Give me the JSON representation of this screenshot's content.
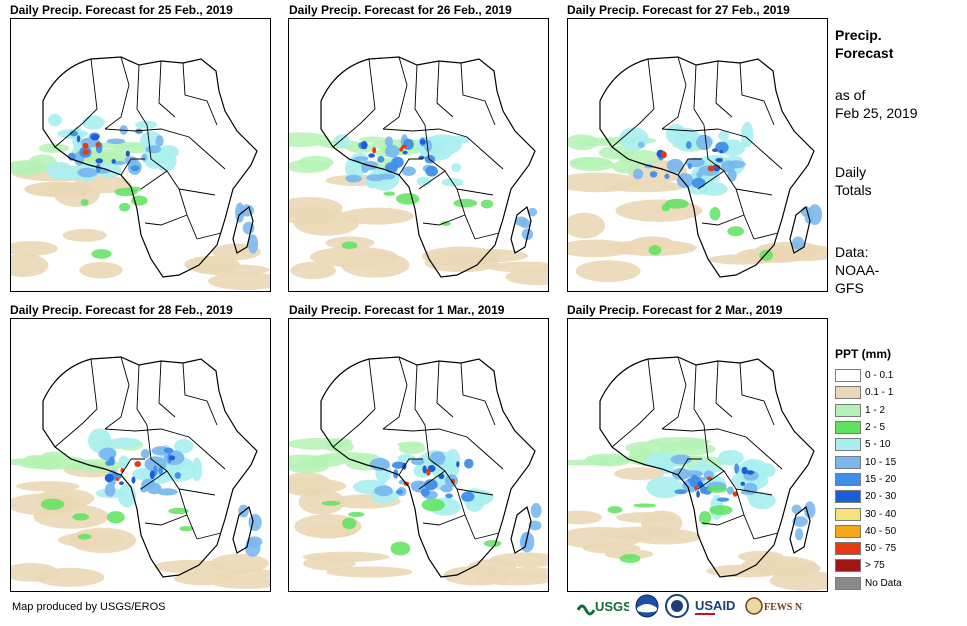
{
  "panels": [
    {
      "title": "Daily Precip. Forecast for 25 Feb., 2019",
      "day": 0
    },
    {
      "title": "Daily Precip. Forecast for 26 Feb., 2019",
      "day": 1
    },
    {
      "title": "Daily Precip. Forecast for 27 Feb., 2019",
      "day": 2
    },
    {
      "title": "Daily Precip. Forecast for 28 Feb., 2019",
      "day": 3
    },
    {
      "title": "Daily Precip. Forecast for 1 Mar., 2019",
      "day": 4
    },
    {
      "title": "Daily Precip. Forecast for 2 Mar., 2019",
      "day": 5
    }
  ],
  "sidebar": {
    "title_line1": "Precip.",
    "title_line2": "Forecast",
    "asof_line1": "as of",
    "asof_line2": "Feb 25, 2019",
    "totals_line1": "Daily",
    "totals_line2": "Totals",
    "data_line1": "Data:",
    "data_line2": "NOAA-",
    "data_line3": "GFS"
  },
  "legend": {
    "title": "PPT (mm)",
    "items": [
      {
        "label": "0 - 0.1",
        "color": "#ffffff"
      },
      {
        "label": "0.1 - 1",
        "color": "#ead7b5"
      },
      {
        "label": "1 - 2",
        "color": "#b4f2b4"
      },
      {
        "label": "2 - 5",
        "color": "#5ee35e"
      },
      {
        "label": "5 - 10",
        "color": "#a8eef0"
      },
      {
        "label": "10 - 15",
        "color": "#79b8ee"
      },
      {
        "label": "15 - 20",
        "color": "#3f8ee8"
      },
      {
        "label": "20 - 30",
        "color": "#1a5ed8"
      },
      {
        "label": "30 - 40",
        "color": "#f5e27a"
      },
      {
        "label": "40 - 50",
        "color": "#f3a51c"
      },
      {
        "label": "50 - 75",
        "color": "#e83a12"
      },
      {
        "label": "> 75",
        "color": "#a01515"
      },
      {
        "label": "No Data",
        "color": "#8a8a8a"
      }
    ]
  },
  "footer": {
    "credit": "Map produced by USGS/EROS"
  },
  "logos": {
    "usgs": "USGS",
    "usaid": "USAID",
    "fews": "FEWS NET"
  }
}
